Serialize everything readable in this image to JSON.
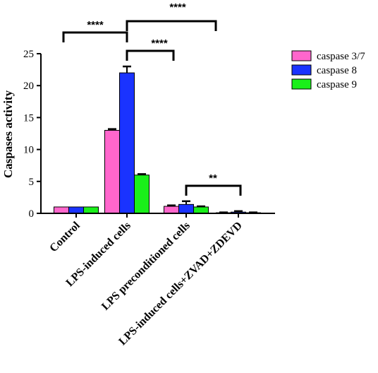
{
  "chart_data": {
    "type": "bar",
    "title": "",
    "xlabel": "",
    "ylabel": "Caspases activity",
    "ylim": [
      0,
      25
    ],
    "yticks": [
      0,
      5,
      10,
      15,
      20,
      25
    ],
    "categories": [
      "Control",
      "LPS-induced cells",
      "LPS preconditioned cells",
      "LPS-induced cells+ZVAD+ZDEVD"
    ],
    "series": [
      {
        "name": "caspase 3/7",
        "color": "#ff66cc",
        "values": [
          1.0,
          13.0,
          1.1,
          0.1
        ],
        "errors": [
          0.0,
          0.2,
          0.15,
          0.05
        ]
      },
      {
        "name": "caspase 8",
        "color": "#1a33ff",
        "values": [
          1.0,
          22.0,
          1.4,
          0.2
        ],
        "errors": [
          0.0,
          1.0,
          0.5,
          0.15
        ]
      },
      {
        "name": "caspase 9",
        "color": "#1aef1a",
        "values": [
          1.0,
          6.0,
          1.0,
          0.1
        ],
        "errors": [
          0.0,
          0.15,
          0.1,
          0.05
        ]
      }
    ],
    "legend_position": "top-right",
    "significance": [
      {
        "label": "****",
        "from": "Control",
        "to": "LPS-induced cells"
      },
      {
        "label": "****",
        "from": "LPS-induced cells",
        "to": "LPS-induced cells+ZVAD+ZDEVD"
      },
      {
        "label": "****",
        "from": "LPS-induced cells",
        "to": "LPS preconditioned cells"
      },
      {
        "label": "**",
        "from": "LPS preconditioned cells",
        "to": "LPS-induced cells+ZVAD+ZDEVD"
      }
    ]
  }
}
